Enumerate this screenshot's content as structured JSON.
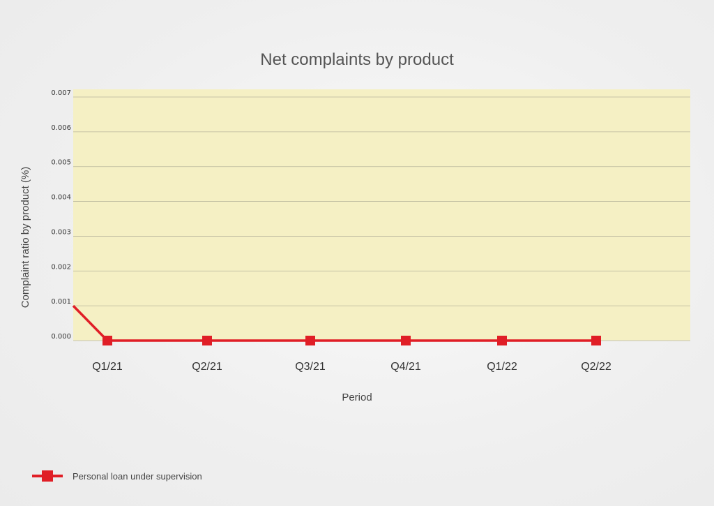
{
  "chart_data": {
    "type": "line",
    "title": "Net complaints by product",
    "xlabel": "Period",
    "ylabel": "Complaint ratio by product (%)",
    "categories": [
      "Q1/21",
      "Q2/21",
      "Q3/21",
      "Q4/21",
      "Q1/22",
      "Q2/22"
    ],
    "yticks": [
      "0.000",
      "0.001",
      "0.002",
      "0.003",
      "0.004",
      "0.005",
      "0.006",
      "0.007"
    ],
    "ylim": [
      0,
      0.007
    ],
    "grid": true,
    "legend_position": "bottom-left",
    "plot_background": "#f5f0c4",
    "series": [
      {
        "name": "Personal loan under supervision",
        "color": "#e01e26",
        "marker": "square",
        "values": [
          0,
          0,
          0,
          0,
          0,
          0
        ],
        "start_value": 0.001
      }
    ]
  }
}
